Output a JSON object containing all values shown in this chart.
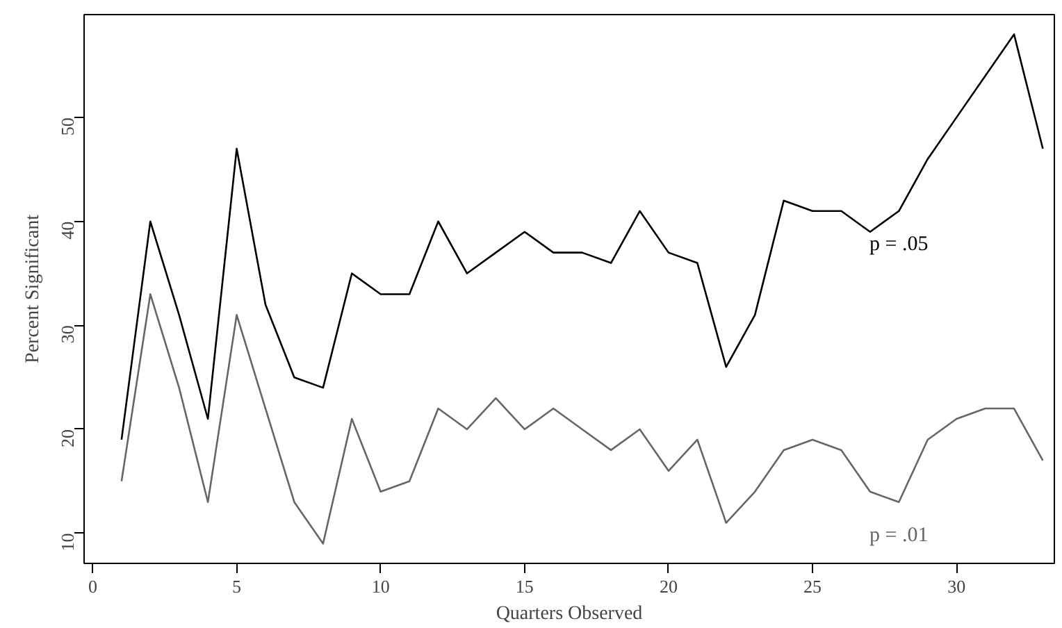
{
  "chart_data": {
    "type": "line",
    "xlabel": "Quarters Observed",
    "ylabel": "Percent Significant",
    "x": [
      1,
      2,
      3,
      4,
      5,
      6,
      7,
      8,
      9,
      10,
      11,
      12,
      13,
      14,
      15,
      16,
      17,
      18,
      19,
      20,
      21,
      22,
      23,
      24,
      25,
      26,
      27,
      28,
      29,
      30,
      31,
      32,
      33
    ],
    "series": [
      {
        "name": "p = .05",
        "color": "#000000",
        "values": [
          19,
          40,
          31,
          21,
          47,
          32,
          25,
          24,
          35,
          33,
          33,
          40,
          35,
          37,
          39,
          37,
          37,
          36,
          41,
          37,
          36,
          26,
          31,
          42,
          41,
          41,
          39,
          41,
          46,
          50,
          54,
          58,
          47
        ]
      },
      {
        "name": "p = .01",
        "color": "#666666",
        "values": [
          15,
          33,
          24,
          13,
          31,
          22,
          13,
          9,
          21,
          14,
          15,
          22,
          20,
          23,
          20,
          22,
          20,
          18,
          20,
          16,
          19,
          11,
          14,
          18,
          19,
          18,
          14,
          13,
          19,
          21,
          22,
          22,
          17
        ]
      }
    ],
    "xlim": [
      -0.3,
      33.4
    ],
    "ylim": [
      7.1,
      59.9
    ],
    "xticks": [
      0,
      5,
      10,
      15,
      20,
      25,
      30
    ],
    "yticks": [
      10,
      20,
      30,
      40,
      50
    ],
    "grid": false,
    "legend": false,
    "marker": "none",
    "line_style": "solid"
  }
}
